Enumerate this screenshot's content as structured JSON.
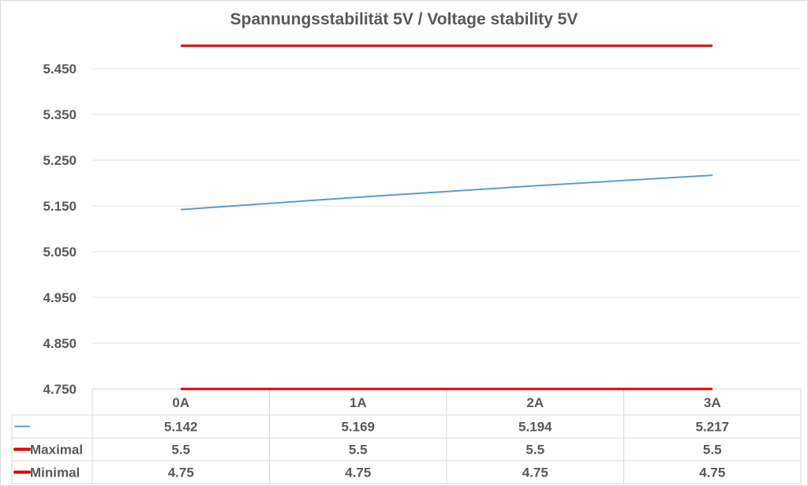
{
  "chart_data": {
    "type": "line",
    "title": "Spannungsstabilität 5V / Voltage stability 5V",
    "categories": [
      "0A",
      "1A",
      "2A",
      "3A"
    ],
    "ylim": [
      4.75,
      5.5
    ],
    "y_ticks": [
      "4.750",
      "4.850",
      "4.950",
      "5.050",
      "5.150",
      "5.250",
      "5.350",
      "5.450"
    ],
    "y_tick_values": [
      4.75,
      4.85,
      4.95,
      5.05,
      5.15,
      5.25,
      5.35,
      5.45
    ],
    "grid": true,
    "legend": "data-table",
    "series": [
      {
        "values": [
          5.142,
          5.169,
          5.194,
          5.217
        ],
        "labels": [
          "5.142",
          "5.169",
          "5.194",
          "5.217"
        ],
        "color": "#5b9bd5"
      },
      {
        "name": "Maximal",
        "values": [
          5.5,
          5.5,
          5.5,
          5.5
        ],
        "labels": [
          "5.5",
          "5.5",
          "5.5",
          "5.5"
        ],
        "color": "#e00000"
      },
      {
        "name": "Minimal",
        "values": [
          4.75,
          4.75,
          4.75,
          4.75
        ],
        "labels": [
          "4.75",
          "4.75",
          "4.75",
          "4.75"
        ],
        "color": "#e00000"
      }
    ]
  },
  "colors": {
    "grid": "#e3e3e3",
    "text": "#595959",
    "table_border": "#d9d9d9"
  }
}
